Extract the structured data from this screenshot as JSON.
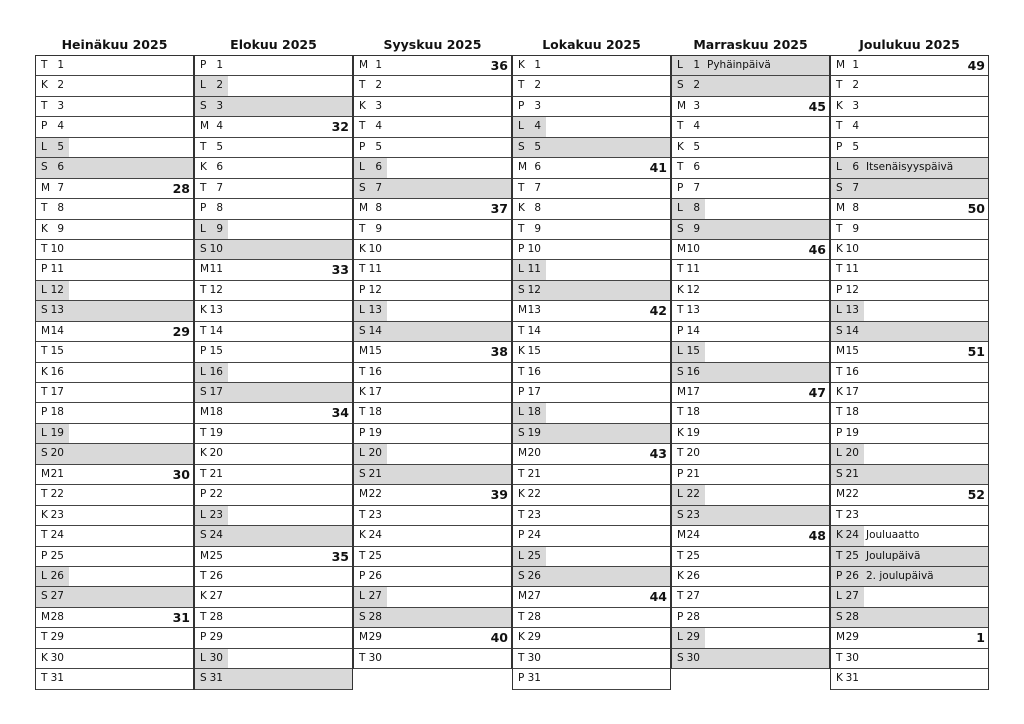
{
  "colors": {
    "weekend_shade": "#d9d9d9",
    "border": "#333333"
  },
  "months": [
    {
      "title": "Heinäkuu 2025",
      "days": [
        [
          "T",
          "1",
          "",
          "",
          ""
        ],
        [
          "K",
          "2",
          "",
          "",
          ""
        ],
        [
          "T",
          "3",
          "",
          "",
          ""
        ],
        [
          "P",
          "4",
          "",
          "",
          ""
        ],
        [
          "L",
          "5",
          "",
          "",
          "partial"
        ],
        [
          "S",
          "6",
          "",
          "",
          "full"
        ],
        [
          "M",
          "7",
          "28",
          "",
          ""
        ],
        [
          "T",
          "8",
          "",
          "",
          ""
        ],
        [
          "K",
          "9",
          "",
          "",
          ""
        ],
        [
          "T",
          "10",
          "",
          "",
          ""
        ],
        [
          "P",
          "11",
          "",
          "",
          ""
        ],
        [
          "L",
          "12",
          "",
          "",
          "partial"
        ],
        [
          "S",
          "13",
          "",
          "",
          "full"
        ],
        [
          "M",
          "14",
          "29",
          "",
          ""
        ],
        [
          "T",
          "15",
          "",
          "",
          ""
        ],
        [
          "K",
          "16",
          "",
          "",
          ""
        ],
        [
          "T",
          "17",
          "",
          "",
          ""
        ],
        [
          "P",
          "18",
          "",
          "",
          ""
        ],
        [
          "L",
          "19",
          "",
          "",
          "partial"
        ],
        [
          "S",
          "20",
          "",
          "",
          "full"
        ],
        [
          "M",
          "21",
          "30",
          "",
          ""
        ],
        [
          "T",
          "22",
          "",
          "",
          ""
        ],
        [
          "K",
          "23",
          "",
          "",
          ""
        ],
        [
          "T",
          "24",
          "",
          "",
          ""
        ],
        [
          "P",
          "25",
          "",
          "",
          ""
        ],
        [
          "L",
          "26",
          "",
          "",
          "partial"
        ],
        [
          "S",
          "27",
          "",
          "",
          "full"
        ],
        [
          "M",
          "28",
          "31",
          "",
          ""
        ],
        [
          "T",
          "29",
          "",
          "",
          ""
        ],
        [
          "K",
          "30",
          "",
          "",
          ""
        ],
        [
          "T",
          "31",
          "",
          "",
          ""
        ]
      ]
    },
    {
      "title": "Elokuu 2025",
      "days": [
        [
          "P",
          "1",
          "",
          "",
          ""
        ],
        [
          "L",
          "2",
          "",
          "",
          "partial"
        ],
        [
          "S",
          "3",
          "",
          "",
          "full"
        ],
        [
          "M",
          "4",
          "32",
          "",
          ""
        ],
        [
          "T",
          "5",
          "",
          "",
          ""
        ],
        [
          "K",
          "6",
          "",
          "",
          ""
        ],
        [
          "T",
          "7",
          "",
          "",
          ""
        ],
        [
          "P",
          "8",
          "",
          "",
          ""
        ],
        [
          "L",
          "9",
          "",
          "",
          "partial"
        ],
        [
          "S",
          "10",
          "",
          "",
          "full"
        ],
        [
          "M",
          "11",
          "33",
          "",
          ""
        ],
        [
          "T",
          "12",
          "",
          "",
          ""
        ],
        [
          "K",
          "13",
          "",
          "",
          ""
        ],
        [
          "T",
          "14",
          "",
          "",
          ""
        ],
        [
          "P",
          "15",
          "",
          "",
          ""
        ],
        [
          "L",
          "16",
          "",
          "",
          "partial"
        ],
        [
          "S",
          "17",
          "",
          "",
          "full"
        ],
        [
          "M",
          "18",
          "34",
          "",
          ""
        ],
        [
          "T",
          "19",
          "",
          "",
          ""
        ],
        [
          "K",
          "20",
          "",
          "",
          ""
        ],
        [
          "T",
          "21",
          "",
          "",
          ""
        ],
        [
          "P",
          "22",
          "",
          "",
          ""
        ],
        [
          "L",
          "23",
          "",
          "",
          "partial"
        ],
        [
          "S",
          "24",
          "",
          "",
          "full"
        ],
        [
          "M",
          "25",
          "35",
          "",
          ""
        ],
        [
          "T",
          "26",
          "",
          "",
          ""
        ],
        [
          "K",
          "27",
          "",
          "",
          ""
        ],
        [
          "T",
          "28",
          "",
          "",
          ""
        ],
        [
          "P",
          "29",
          "",
          "",
          ""
        ],
        [
          "L",
          "30",
          "",
          "",
          "partial"
        ],
        [
          "S",
          "31",
          "",
          "",
          "full"
        ]
      ]
    },
    {
      "title": "Syyskuu 2025",
      "days": [
        [
          "M",
          "1",
          "36",
          "",
          ""
        ],
        [
          "T",
          "2",
          "",
          "",
          ""
        ],
        [
          "K",
          "3",
          "",
          "",
          ""
        ],
        [
          "T",
          "4",
          "",
          "",
          ""
        ],
        [
          "P",
          "5",
          "",
          "",
          ""
        ],
        [
          "L",
          "6",
          "",
          "",
          "partial"
        ],
        [
          "S",
          "7",
          "",
          "",
          "full"
        ],
        [
          "M",
          "8",
          "37",
          "",
          ""
        ],
        [
          "T",
          "9",
          "",
          "",
          ""
        ],
        [
          "K",
          "10",
          "",
          "",
          ""
        ],
        [
          "T",
          "11",
          "",
          "",
          ""
        ],
        [
          "P",
          "12",
          "",
          "",
          ""
        ],
        [
          "L",
          "13",
          "",
          "",
          "partial"
        ],
        [
          "S",
          "14",
          "",
          "",
          "full"
        ],
        [
          "M",
          "15",
          "38",
          "",
          ""
        ],
        [
          "T",
          "16",
          "",
          "",
          ""
        ],
        [
          "K",
          "17",
          "",
          "",
          ""
        ],
        [
          "T",
          "18",
          "",
          "",
          ""
        ],
        [
          "P",
          "19",
          "",
          "",
          ""
        ],
        [
          "L",
          "20",
          "",
          "",
          "partial"
        ],
        [
          "S",
          "21",
          "",
          "",
          "full"
        ],
        [
          "M",
          "22",
          "39",
          "",
          ""
        ],
        [
          "T",
          "23",
          "",
          "",
          ""
        ],
        [
          "K",
          "24",
          "",
          "",
          ""
        ],
        [
          "T",
          "25",
          "",
          "",
          ""
        ],
        [
          "P",
          "26",
          "",
          "",
          ""
        ],
        [
          "L",
          "27",
          "",
          "",
          "partial"
        ],
        [
          "S",
          "28",
          "",
          "",
          "full"
        ],
        [
          "M",
          "29",
          "40",
          "",
          ""
        ],
        [
          "T",
          "30",
          "",
          "",
          ""
        ]
      ]
    },
    {
      "title": "Lokakuu 2025",
      "days": [
        [
          "K",
          "1",
          "",
          "",
          ""
        ],
        [
          "T",
          "2",
          "",
          "",
          ""
        ],
        [
          "P",
          "3",
          "",
          "",
          ""
        ],
        [
          "L",
          "4",
          "",
          "",
          "partial"
        ],
        [
          "S",
          "5",
          "",
          "",
          "full"
        ],
        [
          "M",
          "6",
          "41",
          "",
          ""
        ],
        [
          "T",
          "7",
          "",
          "",
          ""
        ],
        [
          "K",
          "8",
          "",
          "",
          ""
        ],
        [
          "T",
          "9",
          "",
          "",
          ""
        ],
        [
          "P",
          "10",
          "",
          "",
          ""
        ],
        [
          "L",
          "11",
          "",
          "",
          "partial"
        ],
        [
          "S",
          "12",
          "",
          "",
          "full"
        ],
        [
          "M",
          "13",
          "42",
          "",
          ""
        ],
        [
          "T",
          "14",
          "",
          "",
          ""
        ],
        [
          "K",
          "15",
          "",
          "",
          ""
        ],
        [
          "T",
          "16",
          "",
          "",
          ""
        ],
        [
          "P",
          "17",
          "",
          "",
          ""
        ],
        [
          "L",
          "18",
          "",
          "",
          "partial"
        ],
        [
          "S",
          "19",
          "",
          "",
          "full"
        ],
        [
          "M",
          "20",
          "43",
          "",
          ""
        ],
        [
          "T",
          "21",
          "",
          "",
          ""
        ],
        [
          "K",
          "22",
          "",
          "",
          ""
        ],
        [
          "T",
          "23",
          "",
          "",
          ""
        ],
        [
          "P",
          "24",
          "",
          "",
          ""
        ],
        [
          "L",
          "25",
          "",
          "",
          "partial"
        ],
        [
          "S",
          "26",
          "",
          "",
          "full"
        ],
        [
          "M",
          "27",
          "44",
          "",
          ""
        ],
        [
          "T",
          "28",
          "",
          "",
          ""
        ],
        [
          "K",
          "29",
          "",
          "",
          ""
        ],
        [
          "T",
          "30",
          "",
          "",
          ""
        ],
        [
          "P",
          "31",
          "",
          "",
          ""
        ]
      ]
    },
    {
      "title": "Marraskuu 2025",
      "days": [
        [
          "L",
          "1",
          "",
          "Pyhäinpäivä",
          "full"
        ],
        [
          "S",
          "2",
          "",
          "",
          "full"
        ],
        [
          "M",
          "3",
          "45",
          "",
          ""
        ],
        [
          "T",
          "4",
          "",
          "",
          ""
        ],
        [
          "K",
          "5",
          "",
          "",
          ""
        ],
        [
          "T",
          "6",
          "",
          "",
          ""
        ],
        [
          "P",
          "7",
          "",
          "",
          ""
        ],
        [
          "L",
          "8",
          "",
          "",
          "partial"
        ],
        [
          "S",
          "9",
          "",
          "",
          "full"
        ],
        [
          "M",
          "10",
          "46",
          "",
          ""
        ],
        [
          "T",
          "11",
          "",
          "",
          ""
        ],
        [
          "K",
          "12",
          "",
          "",
          ""
        ],
        [
          "T",
          "13",
          "",
          "",
          ""
        ],
        [
          "P",
          "14",
          "",
          "",
          ""
        ],
        [
          "L",
          "15",
          "",
          "",
          "partial"
        ],
        [
          "S",
          "16",
          "",
          "",
          "full"
        ],
        [
          "M",
          "17",
          "47",
          "",
          ""
        ],
        [
          "T",
          "18",
          "",
          "",
          ""
        ],
        [
          "K",
          "19",
          "",
          "",
          ""
        ],
        [
          "T",
          "20",
          "",
          "",
          ""
        ],
        [
          "P",
          "21",
          "",
          "",
          ""
        ],
        [
          "L",
          "22",
          "",
          "",
          "partial"
        ],
        [
          "S",
          "23",
          "",
          "",
          "full"
        ],
        [
          "M",
          "24",
          "48",
          "",
          ""
        ],
        [
          "T",
          "25",
          "",
          "",
          ""
        ],
        [
          "K",
          "26",
          "",
          "",
          ""
        ],
        [
          "T",
          "27",
          "",
          "",
          ""
        ],
        [
          "P",
          "28",
          "",
          "",
          ""
        ],
        [
          "L",
          "29",
          "",
          "",
          "partial"
        ],
        [
          "S",
          "30",
          "",
          "",
          "full"
        ]
      ]
    },
    {
      "title": "Joulukuu 2025",
      "days": [
        [
          "M",
          "1",
          "49",
          "",
          ""
        ],
        [
          "T",
          "2",
          "",
          "",
          ""
        ],
        [
          "K",
          "3",
          "",
          "",
          ""
        ],
        [
          "T",
          "4",
          "",
          "",
          ""
        ],
        [
          "P",
          "5",
          "",
          "",
          ""
        ],
        [
          "L",
          "6",
          "",
          "Itsenäisyyspäivä",
          "full"
        ],
        [
          "S",
          "7",
          "",
          "",
          "full"
        ],
        [
          "M",
          "8",
          "50",
          "",
          ""
        ],
        [
          "T",
          "9",
          "",
          "",
          ""
        ],
        [
          "K",
          "10",
          "",
          "",
          ""
        ],
        [
          "T",
          "11",
          "",
          "",
          ""
        ],
        [
          "P",
          "12",
          "",
          "",
          ""
        ],
        [
          "L",
          "13",
          "",
          "",
          "partial"
        ],
        [
          "S",
          "14",
          "",
          "",
          "full"
        ],
        [
          "M",
          "15",
          "51",
          "",
          ""
        ],
        [
          "T",
          "16",
          "",
          "",
          ""
        ],
        [
          "K",
          "17",
          "",
          "",
          ""
        ],
        [
          "T",
          "18",
          "",
          "",
          ""
        ],
        [
          "P",
          "19",
          "",
          "",
          ""
        ],
        [
          "L",
          "20",
          "",
          "",
          "partial"
        ],
        [
          "S",
          "21",
          "",
          "",
          "full"
        ],
        [
          "M",
          "22",
          "52",
          "",
          ""
        ],
        [
          "T",
          "23",
          "",
          "",
          ""
        ],
        [
          "K",
          "24",
          "",
          "Jouluaatto",
          "partial"
        ],
        [
          "T",
          "25",
          "",
          "Joulupäivä",
          "full"
        ],
        [
          "P",
          "26",
          "",
          "2. joulupäivä",
          "full"
        ],
        [
          "L",
          "27",
          "",
          "",
          "partial"
        ],
        [
          "S",
          "28",
          "",
          "",
          "full"
        ],
        [
          "M",
          "29",
          "1",
          "",
          ""
        ],
        [
          "T",
          "30",
          "",
          "",
          ""
        ],
        [
          "K",
          "31",
          "",
          "",
          ""
        ]
      ]
    }
  ]
}
